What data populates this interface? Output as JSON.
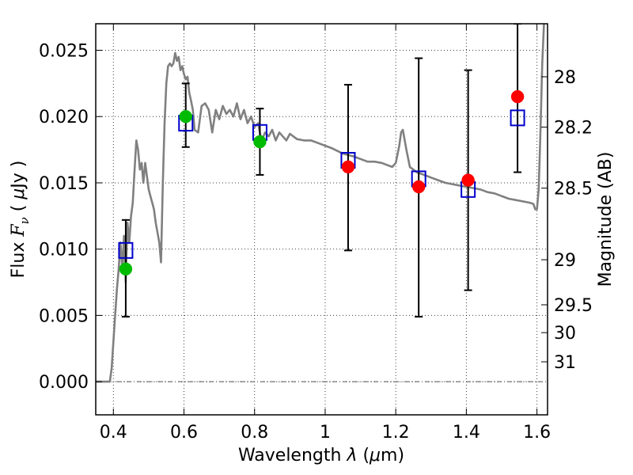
{
  "chart_data": {
    "type": "scatter",
    "xlabel": "Wavelength  λ (μm)",
    "ylabel": "Flux  F_ν  ( μJy )",
    "ylabel_parts": {
      "pre": "Flux  ",
      "sym": "F",
      "sub": "ν",
      "post1": "  ( ",
      "mu": "μ",
      "post2": "Jy )"
    },
    "xlabel_parts": {
      "pre": "Wavelength  ",
      "lam": "λ",
      "post1": " (",
      "mu": "μ",
      "post2": "m)"
    },
    "y2label": "Magnitude (AB)",
    "xlim": [
      0.35,
      1.63
    ],
    "ylim": [
      -0.0025,
      0.027
    ],
    "grid": true,
    "x_ticks": [
      {
        "v": 0.4,
        "label": "0.4"
      },
      {
        "v": 0.6,
        "label": "0.6"
      },
      {
        "v": 0.8,
        "label": "0.8"
      },
      {
        "v": 1.0,
        "label": "1"
      },
      {
        "v": 1.2,
        "label": "1.2"
      },
      {
        "v": 1.4,
        "label": "1.4"
      },
      {
        "v": 1.6,
        "label": "1.6"
      }
    ],
    "y_ticks": [
      {
        "v": 0.0,
        "label": "0.000"
      },
      {
        "v": 0.005,
        "label": "0.005"
      },
      {
        "v": 0.01,
        "label": "0.010"
      },
      {
        "v": 0.015,
        "label": "0.015"
      },
      {
        "v": 0.02,
        "label": "0.020"
      },
      {
        "v": 0.025,
        "label": "0.025"
      }
    ],
    "mag_ticks": [
      {
        "v": 0.023,
        "label": "28"
      },
      {
        "v": 0.0192,
        "label": "28.2"
      },
      {
        "v": 0.0146,
        "label": "28.5"
      },
      {
        "v": 0.0092,
        "label": "29"
      },
      {
        "v": 0.0058,
        "label": "29.5"
      },
      {
        "v": 0.0037,
        "label": "30"
      },
      {
        "v": 0.0015,
        "label": "31"
      }
    ],
    "sed_model": {
      "color": "#808080",
      "points": [
        [
          0.35,
          0.0
        ],
        [
          0.39,
          0.0
        ],
        [
          0.395,
          0.001
        ],
        [
          0.4,
          0.003
        ],
        [
          0.405,
          0.005
        ],
        [
          0.41,
          0.007
        ],
        [
          0.415,
          0.0085
        ],
        [
          0.42,
          0.0105
        ],
        [
          0.425,
          0.0085
        ],
        [
          0.43,
          0.011
        ],
        [
          0.435,
          0.0075
        ],
        [
          0.44,
          0.012
        ],
        [
          0.445,
          0.0105
        ],
        [
          0.45,
          0.0125
        ],
        [
          0.455,
          0.0135
        ],
        [
          0.46,
          0.016
        ],
        [
          0.465,
          0.0182
        ],
        [
          0.47,
          0.0175
        ],
        [
          0.475,
          0.016
        ],
        [
          0.48,
          0.0165
        ],
        [
          0.485,
          0.015
        ],
        [
          0.49,
          0.0165
        ],
        [
          0.495,
          0.0155
        ],
        [
          0.5,
          0.0145
        ],
        [
          0.505,
          0.014
        ],
        [
          0.51,
          0.0135
        ],
        [
          0.515,
          0.013
        ],
        [
          0.52,
          0.012
        ],
        [
          0.53,
          0.0105
        ],
        [
          0.535,
          0.009
        ],
        [
          0.54,
          0.015
        ],
        [
          0.545,
          0.0195
        ],
        [
          0.55,
          0.0225
        ],
        [
          0.555,
          0.0238
        ],
        [
          0.56,
          0.024
        ],
        [
          0.565,
          0.0238
        ],
        [
          0.57,
          0.024
        ],
        [
          0.575,
          0.0248
        ],
        [
          0.58,
          0.0242
        ],
        [
          0.585,
          0.0245
        ],
        [
          0.59,
          0.0235
        ],
        [
          0.595,
          0.0238
        ],
        [
          0.6,
          0.0232
        ],
        [
          0.605,
          0.0228
        ],
        [
          0.61,
          0.023
        ],
        [
          0.615,
          0.0218
        ],
        [
          0.62,
          0.0212
        ],
        [
          0.625,
          0.0205
        ],
        [
          0.63,
          0.019
        ],
        [
          0.64,
          0.0188
        ],
        [
          0.65,
          0.0208
        ],
        [
          0.66,
          0.021
        ],
        [
          0.67,
          0.0205
        ],
        [
          0.68,
          0.0188
        ],
        [
          0.69,
          0.0205
        ],
        [
          0.7,
          0.0198
        ],
        [
          0.71,
          0.0208
        ],
        [
          0.72,
          0.0202
        ],
        [
          0.73,
          0.0205
        ],
        [
          0.74,
          0.02
        ],
        [
          0.75,
          0.021
        ],
        [
          0.76,
          0.0198
        ],
        [
          0.77,
          0.0205
        ],
        [
          0.78,
          0.0195
        ],
        [
          0.79,
          0.02
        ],
        [
          0.8,
          0.0192
        ],
        [
          0.81,
          0.0195
        ],
        [
          0.815,
          0.0188
        ],
        [
          0.82,
          0.0182
        ],
        [
          0.83,
          0.0188
        ],
        [
          0.84,
          0.0185
        ],
        [
          0.85,
          0.019
        ],
        [
          0.86,
          0.0182
        ],
        [
          0.87,
          0.0188
        ],
        [
          0.88,
          0.0185
        ],
        [
          0.89,
          0.0182
        ],
        [
          0.9,
          0.0187
        ],
        [
          0.92,
          0.0183
        ],
        [
          0.94,
          0.0182
        ],
        [
          0.96,
          0.0182
        ],
        [
          0.98,
          0.018
        ],
        [
          1.0,
          0.0178
        ],
        [
          1.02,
          0.0176
        ],
        [
          1.05,
          0.0172
        ],
        [
          1.08,
          0.017
        ],
        [
          1.1,
          0.0168
        ],
        [
          1.12,
          0.0166
        ],
        [
          1.14,
          0.0166
        ],
        [
          1.16,
          0.0165
        ],
        [
          1.18,
          0.0163
        ],
        [
          1.19,
          0.0162
        ],
        [
          1.2,
          0.0165
        ],
        [
          1.21,
          0.0178
        ],
        [
          1.215,
          0.0188
        ],
        [
          1.22,
          0.019
        ],
        [
          1.23,
          0.0175
        ],
        [
          1.24,
          0.0162
        ],
        [
          1.26,
          0.0158
        ],
        [
          1.28,
          0.0156
        ],
        [
          1.3,
          0.0154
        ],
        [
          1.32,
          0.0152
        ],
        [
          1.34,
          0.015
        ],
        [
          1.36,
          0.0149
        ],
        [
          1.38,
          0.0148
        ],
        [
          1.4,
          0.0147
        ],
        [
          1.42,
          0.0146
        ],
        [
          1.44,
          0.0145
        ],
        [
          1.46,
          0.0143
        ],
        [
          1.48,
          0.0142
        ],
        [
          1.5,
          0.014
        ],
        [
          1.52,
          0.0138
        ],
        [
          1.54,
          0.0137
        ],
        [
          1.56,
          0.0136
        ],
        [
          1.58,
          0.0135
        ],
        [
          1.59,
          0.0134
        ],
        [
          1.595,
          0.013
        ],
        [
          1.6,
          0.013
        ],
        [
          1.605,
          0.0145
        ],
        [
          1.61,
          0.019
        ],
        [
          1.615,
          0.024
        ],
        [
          1.62,
          0.027
        ]
      ]
    },
    "model_boxes": {
      "color": "#0000cc",
      "x": [
        0.435,
        0.605,
        0.815,
        1.065,
        1.265,
        1.405,
        1.545
      ],
      "y": [
        0.0099,
        0.0195,
        0.0188,
        0.0167,
        0.0153,
        0.0145,
        0.0199
      ]
    },
    "observed": {
      "color_optical": "#00bb00",
      "color_nir": "#ff0000",
      "points": [
        {
          "x": 0.435,
          "y": 0.0085,
          "err_low": 0.0049,
          "err_high": 0.0122,
          "band": "optical"
        },
        {
          "x": 0.605,
          "y": 0.02,
          "err_low": 0.0177,
          "err_high": 0.0225,
          "band": "optical"
        },
        {
          "x": 0.815,
          "y": 0.0181,
          "err_low": 0.0156,
          "err_high": 0.0206,
          "band": "optical"
        },
        {
          "x": 1.065,
          "y": 0.0162,
          "err_low": 0.0099,
          "err_high": 0.0224,
          "band": "nir"
        },
        {
          "x": 1.265,
          "y": 0.0147,
          "err_low": 0.0049,
          "err_high": 0.0244,
          "band": "nir"
        },
        {
          "x": 1.405,
          "y": 0.0152,
          "err_low": 0.0069,
          "err_high": 0.0235,
          "band": "nir"
        },
        {
          "x": 1.545,
          "y": 0.0215,
          "err_low": 0.0158,
          "err_high": 0.027,
          "band": "nir"
        }
      ]
    },
    "zero_line": {
      "y": 0.0
    }
  }
}
